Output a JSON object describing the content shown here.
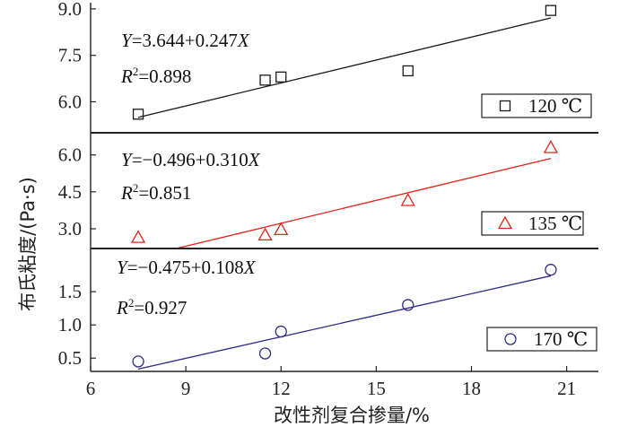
{
  "chart_data": {
    "type": "scatter",
    "xlabel": "改性剂复合掺量/%",
    "ylabel": "布氏粘度/(Pa·s)",
    "xlim": [
      6,
      22
    ],
    "xticks": [
      6,
      9,
      12,
      15,
      18,
      21
    ],
    "xtick_labels": [
      "6",
      "9",
      "12",
      "15",
      "18",
      "21"
    ],
    "panels": [
      {
        "legend": "120 ℃",
        "marker": "square",
        "color": "#1a1a1a",
        "ylim": [
          5.0,
          9.2
        ],
        "yticks": [
          6.0,
          7.5,
          9.0
        ],
        "ytick_labels": [
          "6.0",
          "7.5",
          "9.0"
        ],
        "equation": "Y=3.644+0.247X",
        "r_squared": "R2=0.898",
        "r2_value": "0.898",
        "fit": {
          "intercept": 3.644,
          "slope": 0.247
        },
        "points": [
          {
            "x": 7.5,
            "y": 5.6
          },
          {
            "x": 11.5,
            "y": 6.7
          },
          {
            "x": 12.0,
            "y": 6.8
          },
          {
            "x": 16.0,
            "y": 7.0
          },
          {
            "x": 20.5,
            "y": 8.95
          }
        ]
      },
      {
        "legend": "135 ℃",
        "marker": "triangle",
        "color": "#e2231a",
        "ylim": [
          2.2,
          6.9
        ],
        "yticks": [
          3.0,
          4.5,
          6.0
        ],
        "ytick_labels": [
          "3.0",
          "4.5",
          "6.0"
        ],
        "equation": "Y=−0.496+0.310X",
        "r_squared": "R2=0.851",
        "r2_value": "0.851",
        "fit": {
          "intercept": -0.496,
          "slope": 0.31
        },
        "points": [
          {
            "x": 7.5,
            "y": 2.65
          },
          {
            "x": 11.5,
            "y": 2.75
          },
          {
            "x": 12.0,
            "y": 2.97
          },
          {
            "x": 16.0,
            "y": 4.15
          },
          {
            "x": 20.5,
            "y": 6.3
          }
        ]
      },
      {
        "legend": "170 ℃",
        "marker": "circle",
        "color": "#2d2a8a",
        "ylim": [
          0.3,
          2.15
        ],
        "yticks": [
          0.5,
          1.0,
          1.5
        ],
        "ytick_labels": [
          "0.5",
          "1.0",
          "1.5"
        ],
        "equation": "Y=−0.475+0.108X",
        "r_squared": "R2=0.927",
        "r2_value": "0.927",
        "fit": {
          "intercept": -0.475,
          "slope": 0.108
        },
        "points": [
          {
            "x": 7.5,
            "y": 0.45
          },
          {
            "x": 11.5,
            "y": 0.57
          },
          {
            "x": 12.0,
            "y": 0.9
          },
          {
            "x": 16.0,
            "y": 1.3
          },
          {
            "x": 20.5,
            "y": 1.83
          }
        ]
      }
    ]
  }
}
